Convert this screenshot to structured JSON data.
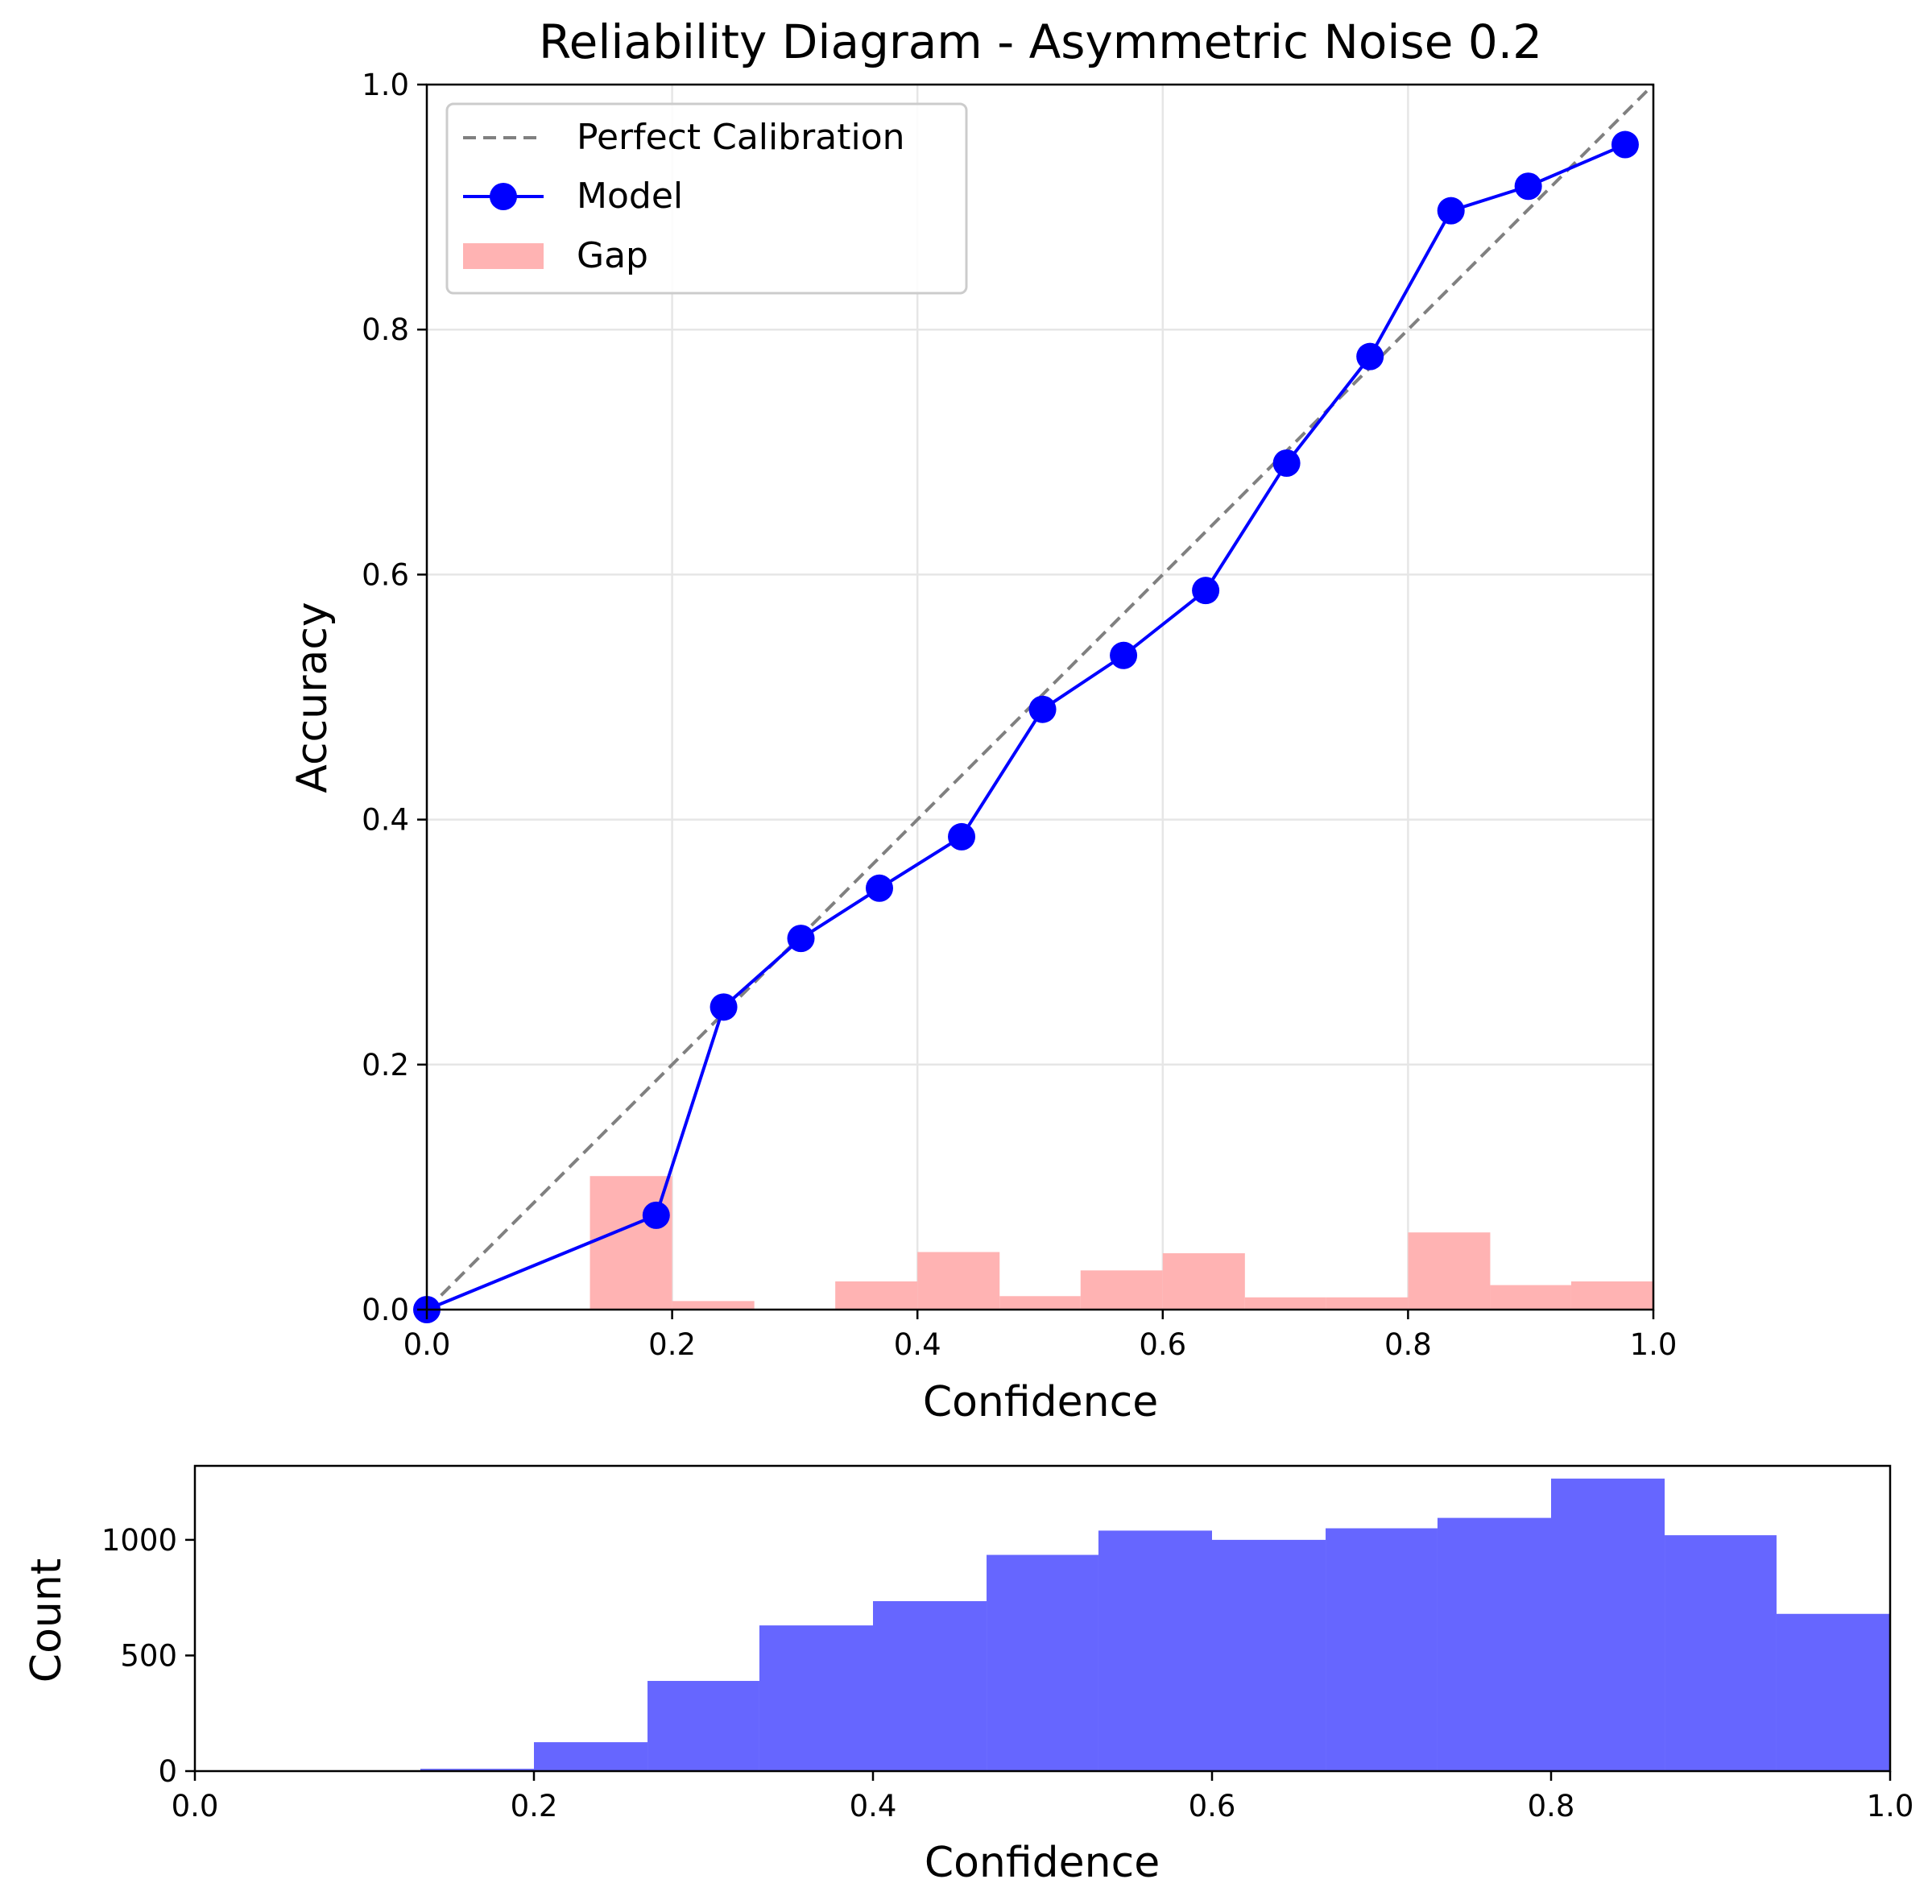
{
  "chart_data": [
    {
      "type": "line",
      "title": "Reliability Diagram - Asymmetric Noise 0.2",
      "xlabel": "Confidence",
      "ylabel": "Accuracy",
      "xlim": [
        0,
        1
      ],
      "ylim": [
        0,
        1
      ],
      "xticks": [
        "0.0",
        "0.2",
        "0.4",
        "0.6",
        "0.8",
        "1.0"
      ],
      "yticks": [
        "0.0",
        "0.2",
        "0.4",
        "0.6",
        "0.8",
        "1.0"
      ],
      "grid": true,
      "legend_position": "top-left",
      "legend": [
        "Perfect Calibration",
        "Model",
        "Gap"
      ],
      "series": [
        {
          "name": "Perfect Calibration",
          "style": "dashed",
          "color": "#808080",
          "x": [
            0,
            1
          ],
          "y": [
            0,
            1
          ]
        },
        {
          "name": "Model",
          "style": "line-marker",
          "color": "#0000ff",
          "x": [
            0.0,
            0.187,
            0.242,
            0.305,
            0.369,
            0.436,
            0.502,
            0.568,
            0.635,
            0.701,
            0.769,
            0.835,
            0.898,
            0.977
          ],
          "y": [
            0.0,
            0.077,
            0.247,
            0.303,
            0.344,
            0.386,
            0.49,
            0.534,
            0.587,
            0.691,
            0.778,
            0.897,
            0.917,
            0.951
          ]
        },
        {
          "name": "Gap",
          "style": "bar",
          "color": "#ffb3b3",
          "bin_start": [
            0.133,
            0.2,
            0.333,
            0.4,
            0.467,
            0.533,
            0.6,
            0.667,
            0.733,
            0.8,
            0.867,
            0.933
          ],
          "bin_end": [
            0.2,
            0.267,
            0.4,
            0.467,
            0.533,
            0.6,
            0.667,
            0.733,
            0.8,
            0.867,
            0.933,
            1.0
          ],
          "values": [
            0.109,
            0.007,
            0.023,
            0.047,
            0.011,
            0.032,
            0.046,
            0.01,
            0.01,
            0.063,
            0.02,
            0.023
          ]
        }
      ]
    },
    {
      "type": "bar",
      "title": "",
      "xlabel": "Confidence",
      "ylabel": "Count",
      "xlim": [
        0,
        1
      ],
      "ylim": [
        0,
        1320
      ],
      "xticks": [
        "0.0",
        "0.2",
        "0.4",
        "0.6",
        "0.8",
        "1.0"
      ],
      "yticks": [
        "0",
        "500",
        "1000"
      ],
      "ytick_values": [
        0,
        500,
        1000
      ],
      "color": "#6666ff",
      "bin_start": [
        0.133,
        0.2,
        0.267,
        0.333,
        0.4,
        0.467,
        0.533,
        0.6,
        0.667,
        0.733,
        0.8,
        0.867,
        0.933
      ],
      "bin_end": [
        0.2,
        0.267,
        0.333,
        0.4,
        0.467,
        0.533,
        0.6,
        0.667,
        0.733,
        0.8,
        0.867,
        0.933,
        1.0
      ],
      "values": [
        10,
        125,
        390,
        630,
        735,
        935,
        1040,
        1000,
        1050,
        1095,
        1265,
        1020,
        680
      ]
    }
  ]
}
